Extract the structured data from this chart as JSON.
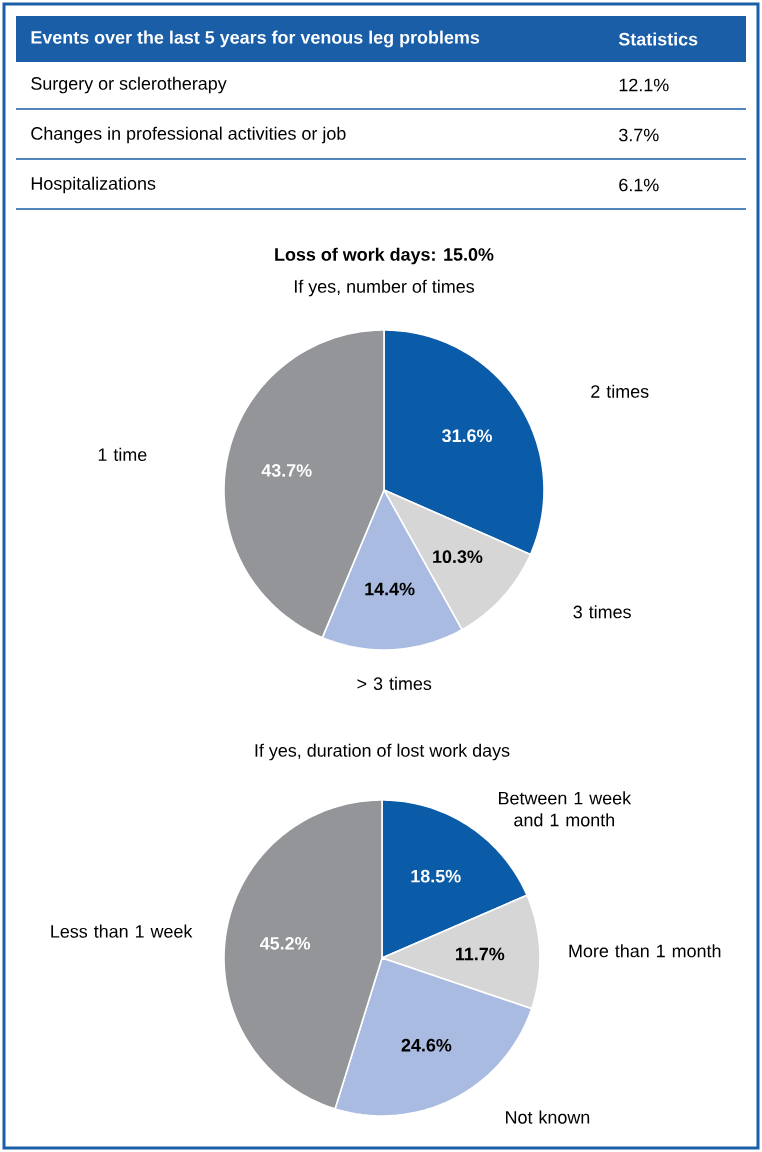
{
  "chart_data": [
    {
      "type": "other",
      "title": "Events over the last 5 years for venous leg problems",
      "annotations": [
        "Statistics",
        "Surgery or sclerotherapy",
        "12.1%",
        "Changes in professional activities or job",
        "3.7%",
        "Hospitalizations",
        "6.1%"
      ]
    },
    {
      "type": "pie",
      "title": "Loss of work days: 15.0%",
      "subtitle": "If yes, number of times",
      "categories": [
        "2 times",
        "3 times",
        "> 3 times",
        "1 time"
      ],
      "values": [
        31.6,
        10.3,
        14.4,
        43.7
      ],
      "value_labels": [
        "31.6%",
        "10.3%",
        "14.4%",
        "43.7%"
      ],
      "colors": [
        "#0b5ca8",
        "#d6d6d6",
        "#a9bbe0",
        "#939598"
      ]
    },
    {
      "type": "pie",
      "title": "If yes, duration of lost work days",
      "categories": [
        "Between 1 week and 1 month",
        "More than 1 month",
        "Not known",
        "Less than 1 week"
      ],
      "values": [
        18.5,
        11.7,
        24.6,
        45.2
      ],
      "value_labels": [
        "18.5%",
        "11.7%",
        "24.6%",
        "45.2%"
      ],
      "colors": [
        "#0b5ca8",
        "#d6d6d6",
        "#a9bbe0",
        "#939598"
      ]
    }
  ]
}
